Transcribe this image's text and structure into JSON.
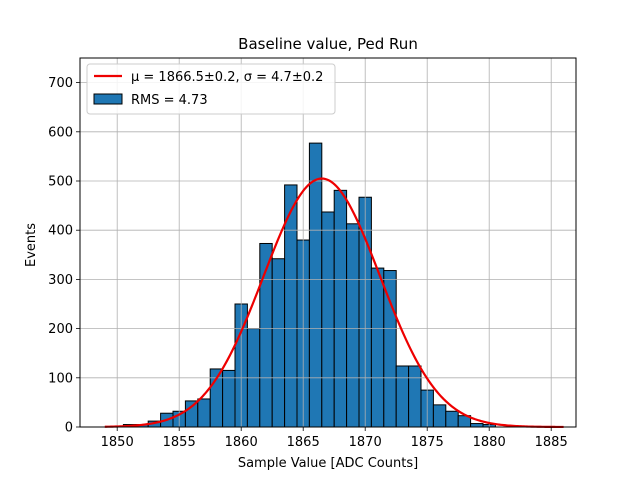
{
  "chart_data": {
    "type": "bar",
    "title": "Baseline value, Ped Run",
    "xlabel": "Sample Value [ADC Counts]",
    "ylabel": "Events",
    "xlim": [
      1847,
      1887
    ],
    "ylim": [
      0,
      750
    ],
    "xticks": [
      1850,
      1855,
      1860,
      1865,
      1870,
      1875,
      1880,
      1885
    ],
    "yticks": [
      0,
      100,
      200,
      300,
      400,
      500,
      600,
      700
    ],
    "grid": true,
    "legend_placement": "top-left",
    "bin_width": 1,
    "bins": [
      {
        "x": 1851,
        "value": 5
      },
      {
        "x": 1852,
        "value": 5
      },
      {
        "x": 1853,
        "value": 12
      },
      {
        "x": 1854,
        "value": 28
      },
      {
        "x": 1855,
        "value": 32
      },
      {
        "x": 1856,
        "value": 53
      },
      {
        "x": 1857,
        "value": 57
      },
      {
        "x": 1858,
        "value": 118
      },
      {
        "x": 1859,
        "value": 115
      },
      {
        "x": 1860,
        "value": 250
      },
      {
        "x": 1861,
        "value": 200
      },
      {
        "x": 1862,
        "value": 373
      },
      {
        "x": 1863,
        "value": 342
      },
      {
        "x": 1864,
        "value": 492
      },
      {
        "x": 1865,
        "value": 380
      },
      {
        "x": 1866,
        "value": 577
      },
      {
        "x": 1867,
        "value": 437
      },
      {
        "x": 1868,
        "value": 481
      },
      {
        "x": 1869,
        "value": 413
      },
      {
        "x": 1870,
        "value": 467
      },
      {
        "x": 1871,
        "value": 323
      },
      {
        "x": 1872,
        "value": 318
      },
      {
        "x": 1873,
        "value": 124
      },
      {
        "x": 1874,
        "value": 124
      },
      {
        "x": 1875,
        "value": 75
      },
      {
        "x": 1876,
        "value": 45
      },
      {
        "x": 1877,
        "value": 32
      },
      {
        "x": 1878,
        "value": 23
      },
      {
        "x": 1879,
        "value": 7
      },
      {
        "x": 1880,
        "value": 5
      }
    ],
    "fit": {
      "mu": 1866.5,
      "sigma": 4.7,
      "amplitude": 505,
      "x_range": [
        1849,
        1886
      ],
      "color": "#ee0000"
    },
    "bar_color": "#1f77b4",
    "legend": [
      {
        "label": "μ = 1866.5±0.2, σ = 4.7±0.2",
        "kind": "line",
        "color": "#ee0000"
      },
      {
        "label": "RMS = 4.73",
        "kind": "patch",
        "color": "#1f77b4"
      }
    ]
  }
}
